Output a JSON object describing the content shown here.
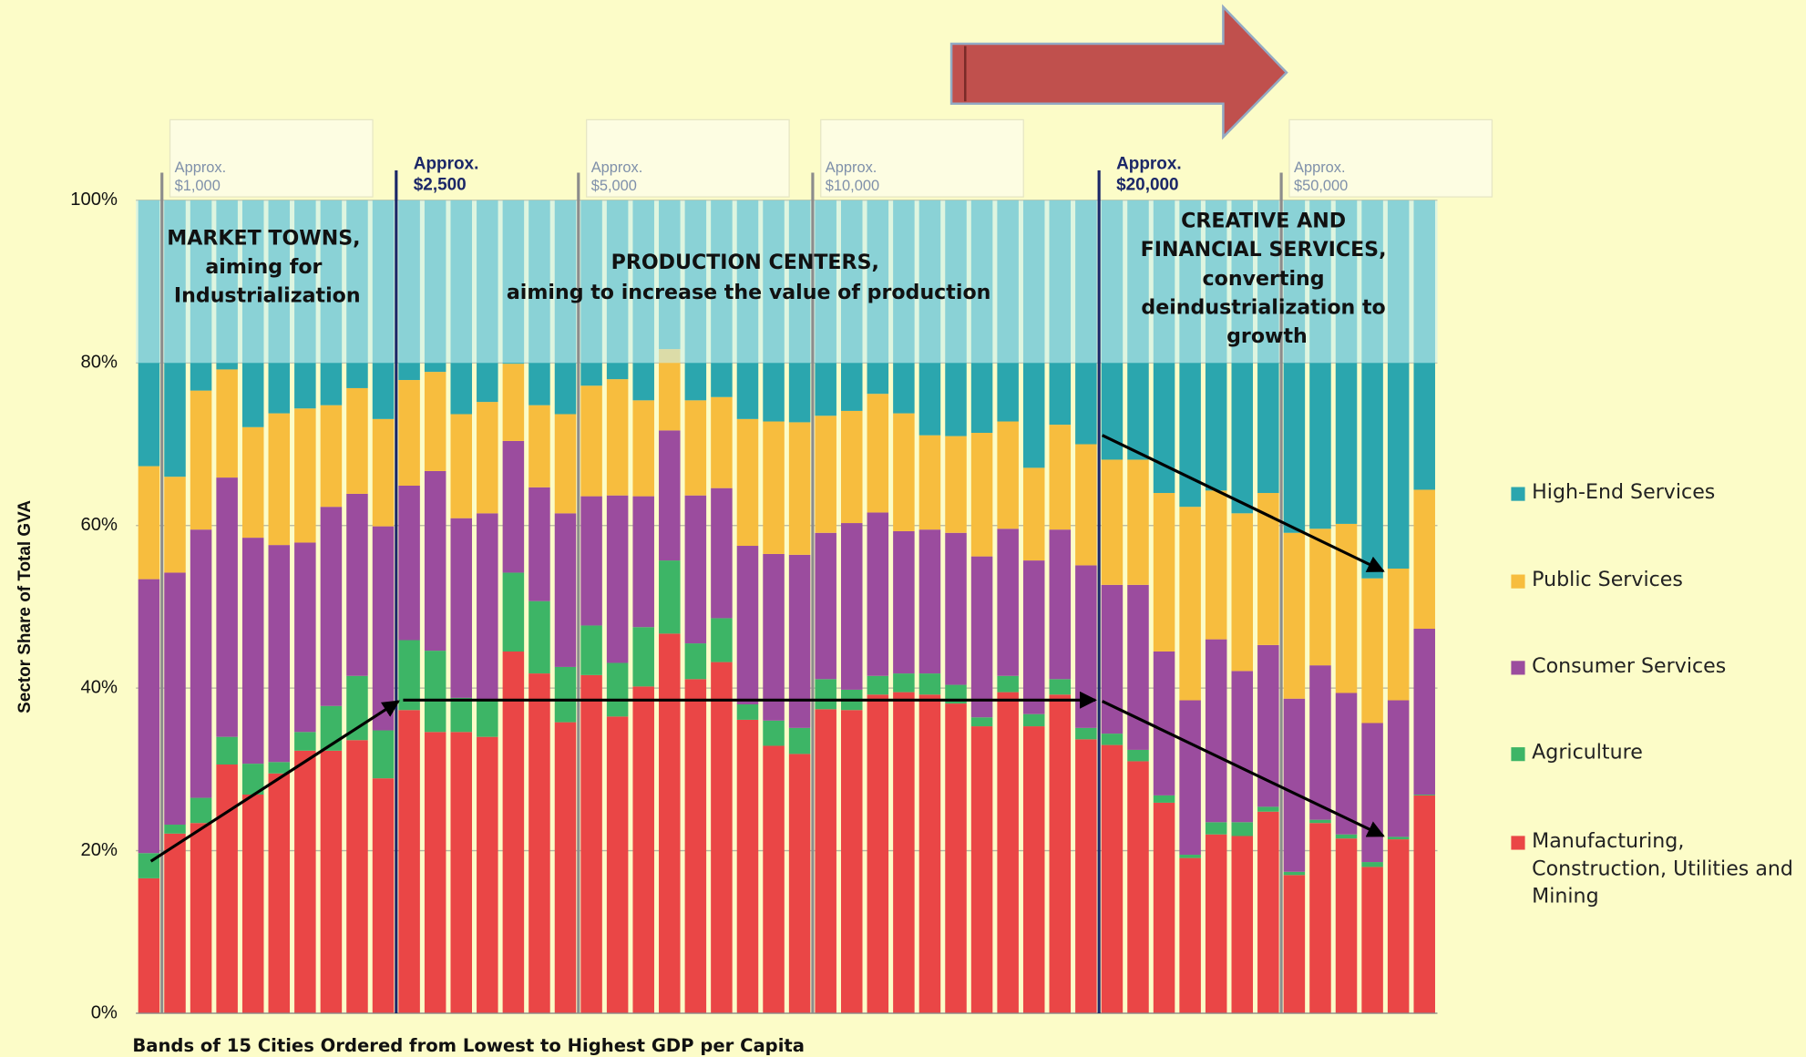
{
  "chart_data": {
    "type": "stacked_bar",
    "ylabel": "Sector Share of Total GVA",
    "xlabel": "Bands of 15 Cities Ordered from Lowest to Highest GDP per Capita",
    "categories": [
      null,
      null,
      null,
      null,
      null,
      null,
      null,
      null,
      null,
      null,
      null,
      null,
      null,
      null,
      null,
      null,
      null,
      null,
      null,
      null,
      null,
      null,
      null,
      null,
      null,
      null,
      null,
      null,
      null,
      null,
      null,
      null,
      null,
      null,
      null,
      null,
      null,
      null,
      null,
      null,
      null,
      null,
      null,
      null,
      null,
      null,
      null,
      null,
      null,
      null
    ],
    "ylim": [
      0,
      100
    ],
    "yticks": [
      {
        "value": 0,
        "label": "0%"
      },
      {
        "value": 20,
        "label": "20%"
      },
      {
        "value": 40,
        "label": "40%"
      },
      {
        "value": 60,
        "label": "60%"
      },
      {
        "value": 80,
        "label": "80%"
      },
      {
        "value": 100,
        "label": "100%"
      }
    ],
    "grid": true,
    "shaded_range": [
      80,
      100
    ],
    "legend": "right",
    "series": [
      {
        "name": "Manufacturing, Construction, Utilities and Mining",
        "color": "#ea4646",
        "values": [
          16.6,
          22.1,
          23.4,
          30.6,
          26.9,
          29.5,
          32.3,
          32.3,
          33.6,
          28.9,
          37.3,
          34.6,
          34.6,
          34.0,
          44.5,
          41.8,
          35.8,
          41.6,
          36.5,
          40.2,
          46.7,
          41.1,
          43.2,
          36.1,
          32.9,
          31.9,
          37.4,
          37.3,
          39.2,
          39.5,
          39.2,
          38.1,
          35.3,
          39.5,
          35.3,
          39.2,
          33.7,
          33.0,
          31.0,
          25.9,
          19.1,
          22.0,
          21.8,
          24.8,
          17.0,
          23.4,
          21.5,
          18.0,
          21.4,
          26.8
        ]
      },
      {
        "name": "Agriculture",
        "color": "#3db566",
        "values": [
          3.1,
          1.1,
          3.1,
          3.4,
          3.8,
          1.4,
          2.3,
          5.5,
          7.9,
          5.9,
          8.6,
          10.0,
          4.2,
          4.4,
          9.7,
          8.9,
          6.8,
          6.1,
          6.6,
          7.3,
          9.0,
          4.4,
          5.4,
          1.9,
          3.1,
          3.2,
          3.7,
          2.5,
          2.3,
          2.3,
          2.6,
          2.3,
          1.1,
          2.0,
          1.5,
          1.9,
          1.4,
          1.4,
          1.4,
          0.9,
          0.4,
          1.5,
          1.7,
          0.6,
          0.4,
          0.4,
          0.5,
          0.6,
          0.3,
          0.1
        ]
      },
      {
        "name": "Consumer Services",
        "color": "#9b4c9e",
        "values": [
          33.7,
          31.0,
          33.0,
          31.9,
          27.8,
          26.7,
          23.3,
          24.5,
          22.4,
          25.1,
          19.0,
          22.1,
          22.1,
          23.1,
          16.2,
          14.0,
          18.9,
          15.9,
          20.6,
          16.1,
          16.0,
          18.2,
          16.0,
          19.5,
          20.5,
          21.3,
          18.0,
          20.5,
          20.1,
          17.5,
          17.7,
          18.7,
          19.8,
          18.1,
          18.9,
          18.4,
          20.0,
          18.3,
          20.3,
          17.7,
          19.0,
          22.5,
          18.6,
          19.9,
          21.3,
          19.0,
          17.4,
          17.1,
          16.8,
          20.4
        ]
      },
      {
        "name": "Public Services",
        "color": "#f7bd3e",
        "values": [
          13.9,
          11.8,
          17.1,
          13.3,
          13.6,
          16.2,
          16.5,
          12.5,
          13.0,
          13.2,
          13.0,
          12.2,
          12.8,
          13.7,
          9.5,
          10.1,
          12.2,
          13.6,
          14.3,
          11.8,
          10.0,
          11.7,
          11.2,
          15.6,
          16.3,
          16.3,
          14.4,
          13.8,
          14.6,
          14.5,
          11.6,
          11.9,
          15.2,
          13.2,
          11.4,
          12.9,
          14.9,
          15.4,
          15.4,
          19.5,
          23.8,
          18.3,
          19.4,
          18.7,
          20.4,
          16.8,
          20.8,
          17.8,
          16.2,
          17.1
        ]
      },
      {
        "name": "High-End Services",
        "color": "#2ba6ae",
        "values": [
          32.7,
          34.0,
          23.4,
          20.8,
          27.9,
          26.2,
          25.6,
          25.2,
          23.1,
          26.9,
          22.1,
          21.1,
          26.3,
          24.8,
          20.1,
          25.2,
          26.3,
          22.8,
          22.0,
          24.6,
          18.3,
          24.6,
          24.2,
          26.9,
          27.2,
          27.3,
          26.5,
          25.9,
          23.8,
          26.2,
          28.9,
          29.0,
          28.6,
          27.2,
          32.9,
          27.6,
          30.0,
          31.9,
          31.9,
          36.0,
          37.7,
          35.7,
          38.5,
          36.0,
          40.9,
          40.4,
          39.8,
          46.5,
          45.3,
          35.6
        ]
      }
    ],
    "markers": [
      {
        "label": [
          "Approx.",
          "$1,000"
        ],
        "after": 1,
        "style": "light"
      },
      {
        "label": [
          "Approx.",
          "$2,500"
        ],
        "after": 10,
        "style": "bold"
      },
      {
        "label": [
          "Approx.",
          "$5,000"
        ],
        "after": 17,
        "style": "light"
      },
      {
        "label": [
          "Approx.",
          "$10,000"
        ],
        "after": 26,
        "style": "light"
      },
      {
        "label": [
          "Approx.",
          "$20,000"
        ],
        "after": 37,
        "style": "bold"
      },
      {
        "label": [
          "Approx.",
          "$50,000"
        ],
        "after": 44,
        "style": "light"
      }
    ],
    "regions": [
      [
        "MARKET TOWNS,",
        "aiming for",
        "Industrialization"
      ],
      [
        "PRODUCTION CENTERS,",
        "aiming to increase the value of production"
      ],
      [
        "CREATIVE AND",
        "FINANCIAL SERVICES,",
        "converting",
        "deindustrialization to",
        "growth"
      ]
    ]
  }
}
